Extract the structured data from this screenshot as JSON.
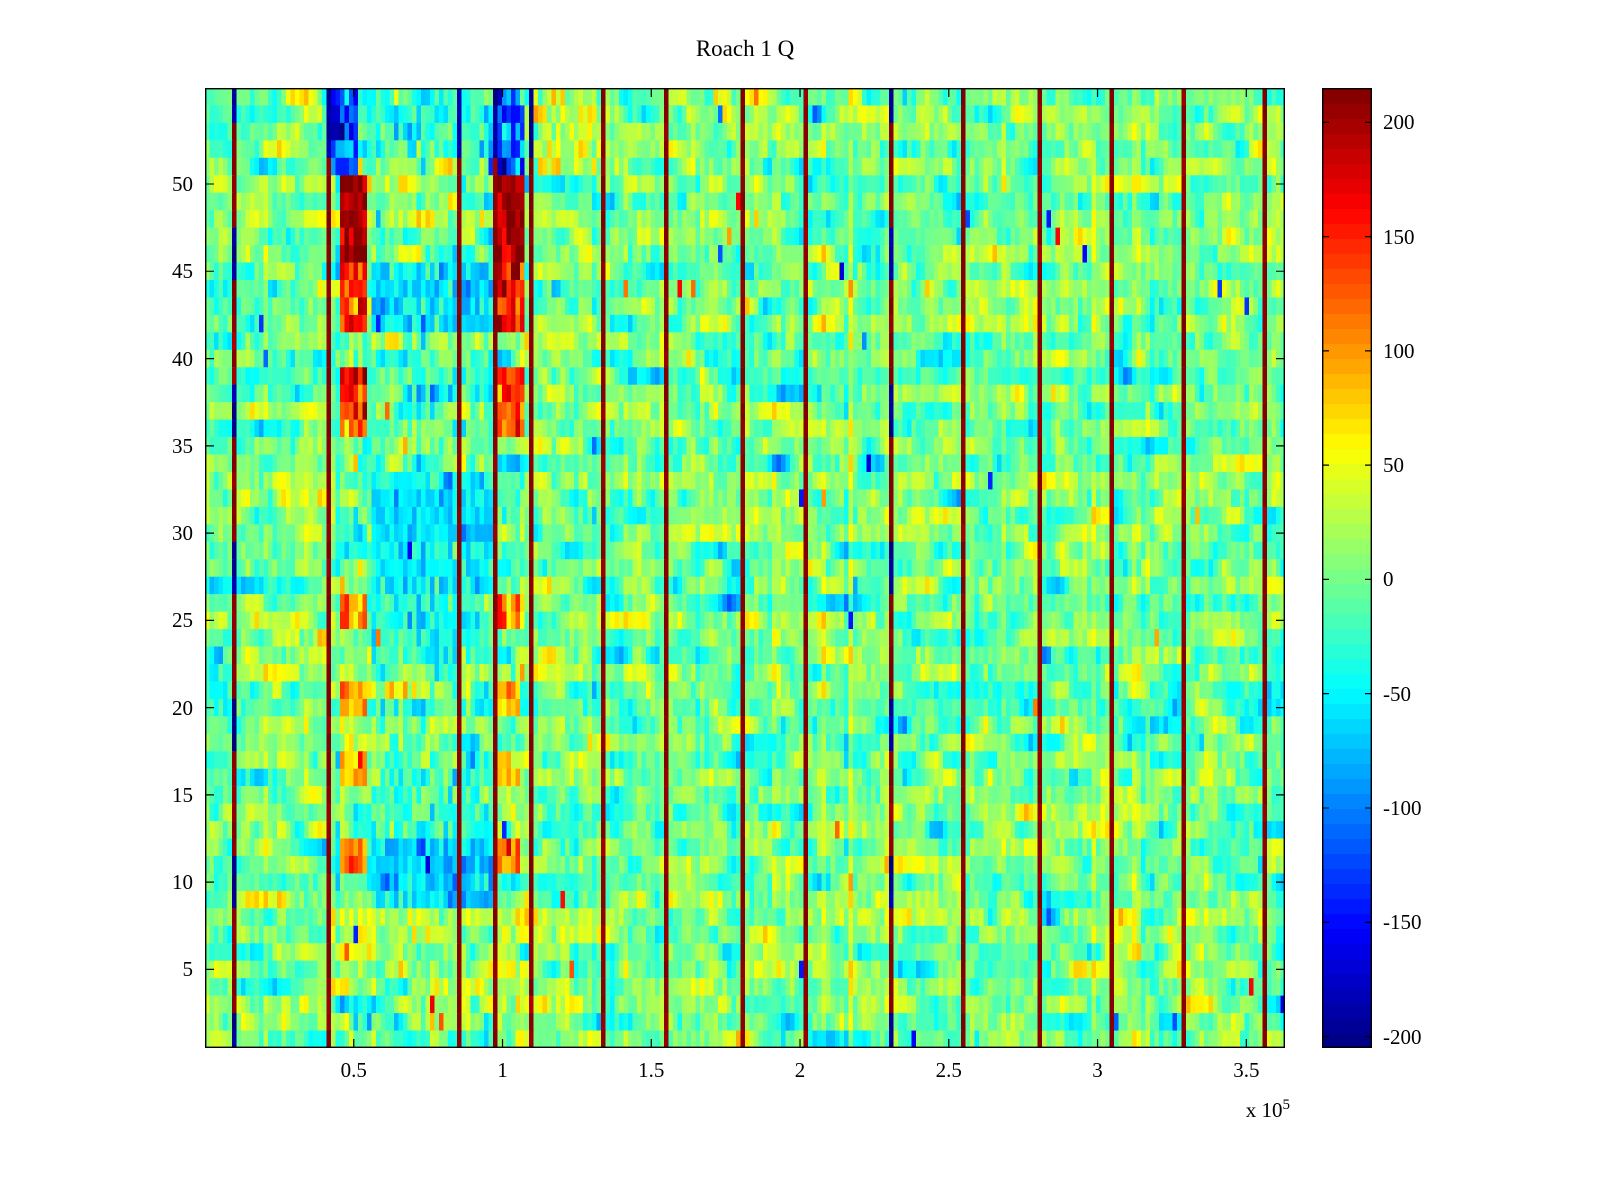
{
  "chart_data": {
    "type": "heatmap",
    "title": "Roach 1 Q",
    "colormap": "jet",
    "clim": [
      -205,
      215
    ],
    "x_range_e5": [
      0,
      3.63
    ],
    "y_range": [
      0.5,
      55.5
    ],
    "grid": {
      "rows": 55,
      "cols": 240
    },
    "x_ticks": [
      {
        "v": 0.5,
        "label": "0.5"
      },
      {
        "v": 1.0,
        "label": "1"
      },
      {
        "v": 1.5,
        "label": "1.5"
      },
      {
        "v": 2.0,
        "label": "2"
      },
      {
        "v": 2.5,
        "label": "2.5"
      },
      {
        "v": 3.0,
        "label": "3"
      },
      {
        "v": 3.5,
        "label": "3.5"
      }
    ],
    "y_ticks": [
      {
        "v": 5,
        "label": "5"
      },
      {
        "v": 10,
        "label": "10"
      },
      {
        "v": 15,
        "label": "15"
      },
      {
        "v": 20,
        "label": "20"
      },
      {
        "v": 25,
        "label": "25"
      },
      {
        "v": 30,
        "label": "30"
      },
      {
        "v": 35,
        "label": "35"
      },
      {
        "v": 40,
        "label": "40"
      },
      {
        "v": 45,
        "label": "45"
      },
      {
        "v": 50,
        "label": "50"
      }
    ],
    "colorbar_ticks": [
      {
        "v": 200,
        "label": "200"
      },
      {
        "v": 150,
        "label": "150"
      },
      {
        "v": 100,
        "label": "100"
      },
      {
        "v": 50,
        "label": "50"
      },
      {
        "v": 0,
        "label": "0"
      },
      {
        "v": -50,
        "label": "-50"
      },
      {
        "v": -100,
        "label": "-100"
      },
      {
        "v": -150,
        "label": "-150"
      },
      {
        "v": -200,
        "label": "-200"
      }
    ],
    "x_exponent": {
      "prefix": "x 10",
      "sup": "5"
    },
    "noise": {
      "seed": 1337,
      "std": 24,
      "ar": 0.72,
      "speckle_prob": 0.003
    },
    "band": {
      "x0": 0.42,
      "x1": 1.08,
      "extra_std": 15
    },
    "vertical_line_value": 212,
    "vertical_line_blue_value": -195,
    "vertical_lines": [
      {
        "x": 0.095,
        "blue_segments": true
      },
      {
        "x": 0.415,
        "blue_top": true
      },
      {
        "x": 0.845,
        "blue_top": true
      },
      {
        "x": 0.965,
        "blue_top": true
      },
      {
        "x": 1.085,
        "blue_top": true
      },
      {
        "x": 1.33
      },
      {
        "x": 1.55
      },
      {
        "x": 1.795
      },
      {
        "x": 2.015
      },
      {
        "x": 2.295,
        "blue_segments": true
      },
      {
        "x": 2.535
      },
      {
        "x": 2.795
      },
      {
        "x": 3.035
      },
      {
        "x": 3.275
      },
      {
        "x": 3.55
      }
    ],
    "cold_spots": [
      {
        "x0": 0.555,
        "x1": 0.955,
        "y0": 42,
        "y1": 45,
        "v": -60,
        "j": 25
      },
      {
        "x0": 0.555,
        "x1": 0.955,
        "y0": 27,
        "y1": 33,
        "v": -52,
        "j": 22
      },
      {
        "x0": 0.555,
        "x1": 0.955,
        "y0": 30,
        "y1": 32,
        "v": -60,
        "j": 18
      },
      {
        "x0": 0.555,
        "x1": 0.955,
        "y0": 23,
        "y1": 26,
        "v": -35,
        "j": 25
      },
      {
        "x0": 0.555,
        "x1": 0.955,
        "y0": 13,
        "y1": 16,
        "v": -25,
        "j": 28
      },
      {
        "x0": 0.555,
        "x1": 0.955,
        "y0": 9,
        "y1": 12,
        "v": -65,
        "j": 25
      },
      {
        "x0": 0.43,
        "x1": 0.52,
        "y0": 51,
        "y1": 55,
        "v": -120,
        "j": 45
      },
      {
        "x0": 0.95,
        "x1": 1.06,
        "y0": 51,
        "y1": 55,
        "v": -110,
        "j": 45
      },
      {
        "x0": 0.52,
        "x1": 0.95,
        "y0": 52,
        "y1": 55,
        "v": -35,
        "j": 30
      }
    ],
    "hot_spots": [
      {
        "x0": 0.455,
        "x1": 0.535,
        "y0": 46,
        "y1": 50,
        "v": 200,
        "j": 22
      },
      {
        "x0": 0.975,
        "x1": 1.065,
        "y0": 46,
        "y1": 50,
        "v": 195,
        "j": 25
      },
      {
        "x0": 0.455,
        "x1": 0.535,
        "y0": 42,
        "y1": 45,
        "v": 150,
        "j": 35
      },
      {
        "x0": 0.975,
        "x1": 1.065,
        "y0": 42,
        "y1": 45,
        "v": 150,
        "j": 35
      },
      {
        "x0": 0.455,
        "x1": 0.535,
        "y0": 36,
        "y1": 39,
        "v": 140,
        "j": 35
      },
      {
        "x0": 0.975,
        "x1": 1.055,
        "y0": 36,
        "y1": 39,
        "v": 135,
        "j": 35
      },
      {
        "x0": 0.455,
        "x1": 0.535,
        "y0": 25,
        "y1": 26,
        "v": 105,
        "j": 30
      },
      {
        "x0": 0.975,
        "x1": 1.055,
        "y0": 25,
        "y1": 26,
        "v": 95,
        "j": 30
      },
      {
        "x0": 0.455,
        "x1": 0.525,
        "y0": 20,
        "y1": 21,
        "v": 95,
        "j": 30
      },
      {
        "x0": 0.985,
        "x1": 1.045,
        "y0": 20,
        "y1": 21,
        "v": 90,
        "j": 30
      },
      {
        "x0": 0.455,
        "x1": 0.525,
        "y0": 16,
        "y1": 17,
        "v": 95,
        "j": 30
      },
      {
        "x0": 0.985,
        "x1": 1.045,
        "y0": 16,
        "y1": 17,
        "v": 90,
        "j": 30
      },
      {
        "x0": 0.46,
        "x1": 0.53,
        "y0": 11,
        "y1": 12,
        "v": 120,
        "j": 30
      },
      {
        "x0": 0.985,
        "x1": 1.05,
        "y0": 11,
        "y1": 12,
        "v": 120,
        "j": 30
      },
      {
        "x0": 1.09,
        "x1": 1.3,
        "y0": 51,
        "y1": 55,
        "v": 35,
        "j": 30
      }
    ]
  }
}
